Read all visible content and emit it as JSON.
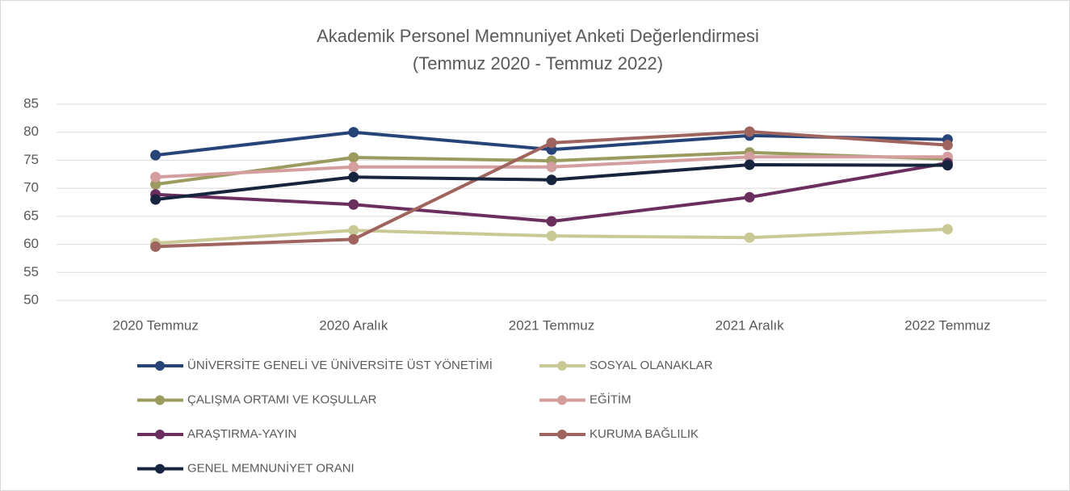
{
  "chart_data": {
    "type": "line",
    "title": "Akademik Personel Memnuniyet Anketi Değerlendirmesi",
    "subtitle": "(Temmuz 2020 - Temmuz 2022)",
    "categories": [
      "2020 Temmuz",
      "2020 Aralık",
      "2021 Temmuz",
      "2021 Aralık",
      "2022 Temmuz"
    ],
    "ylim": [
      50,
      85
    ],
    "yticks": [
      50,
      55,
      60,
      65,
      70,
      75,
      80,
      85
    ],
    "grid": true,
    "series": [
      {
        "name": "ÜNİVERSİTE GENELİ VE ÜNİVERSİTE ÜST YÖNETİMİ",
        "color": "#264478",
        "values": [
          75.9,
          80.0,
          76.9,
          79.4,
          78.7
        ]
      },
      {
        "name": "SOSYAL OLANAKLAR",
        "color": "#c9c995",
        "values": [
          60.2,
          62.5,
          61.5,
          61.2,
          62.7
        ]
      },
      {
        "name": "ÇALIŞMA ORTAMI VE KOŞULLAR",
        "color": "#9b9b60",
        "values": [
          70.7,
          75.5,
          74.9,
          76.4,
          75.2
        ]
      },
      {
        "name": "EĞİTİM",
        "color": "#d59e9e",
        "values": [
          72.0,
          73.8,
          73.8,
          75.6,
          75.6
        ]
      },
      {
        "name": "ARAŞTIRMA-YAYIN",
        "color": "#6b2f5f",
        "values": [
          68.9,
          67.1,
          64.1,
          68.4,
          74.5
        ]
      },
      {
        "name": "KURUMA BAĞLILIK",
        "color": "#a0645f",
        "values": [
          59.6,
          60.9,
          78.1,
          80.1,
          77.7
        ]
      },
      {
        "name": "GENEL MEMNUNİYET ORANI",
        "color": "#17243d",
        "values": [
          68.0,
          72.0,
          71.5,
          74.2,
          74.1
        ]
      }
    ]
  }
}
